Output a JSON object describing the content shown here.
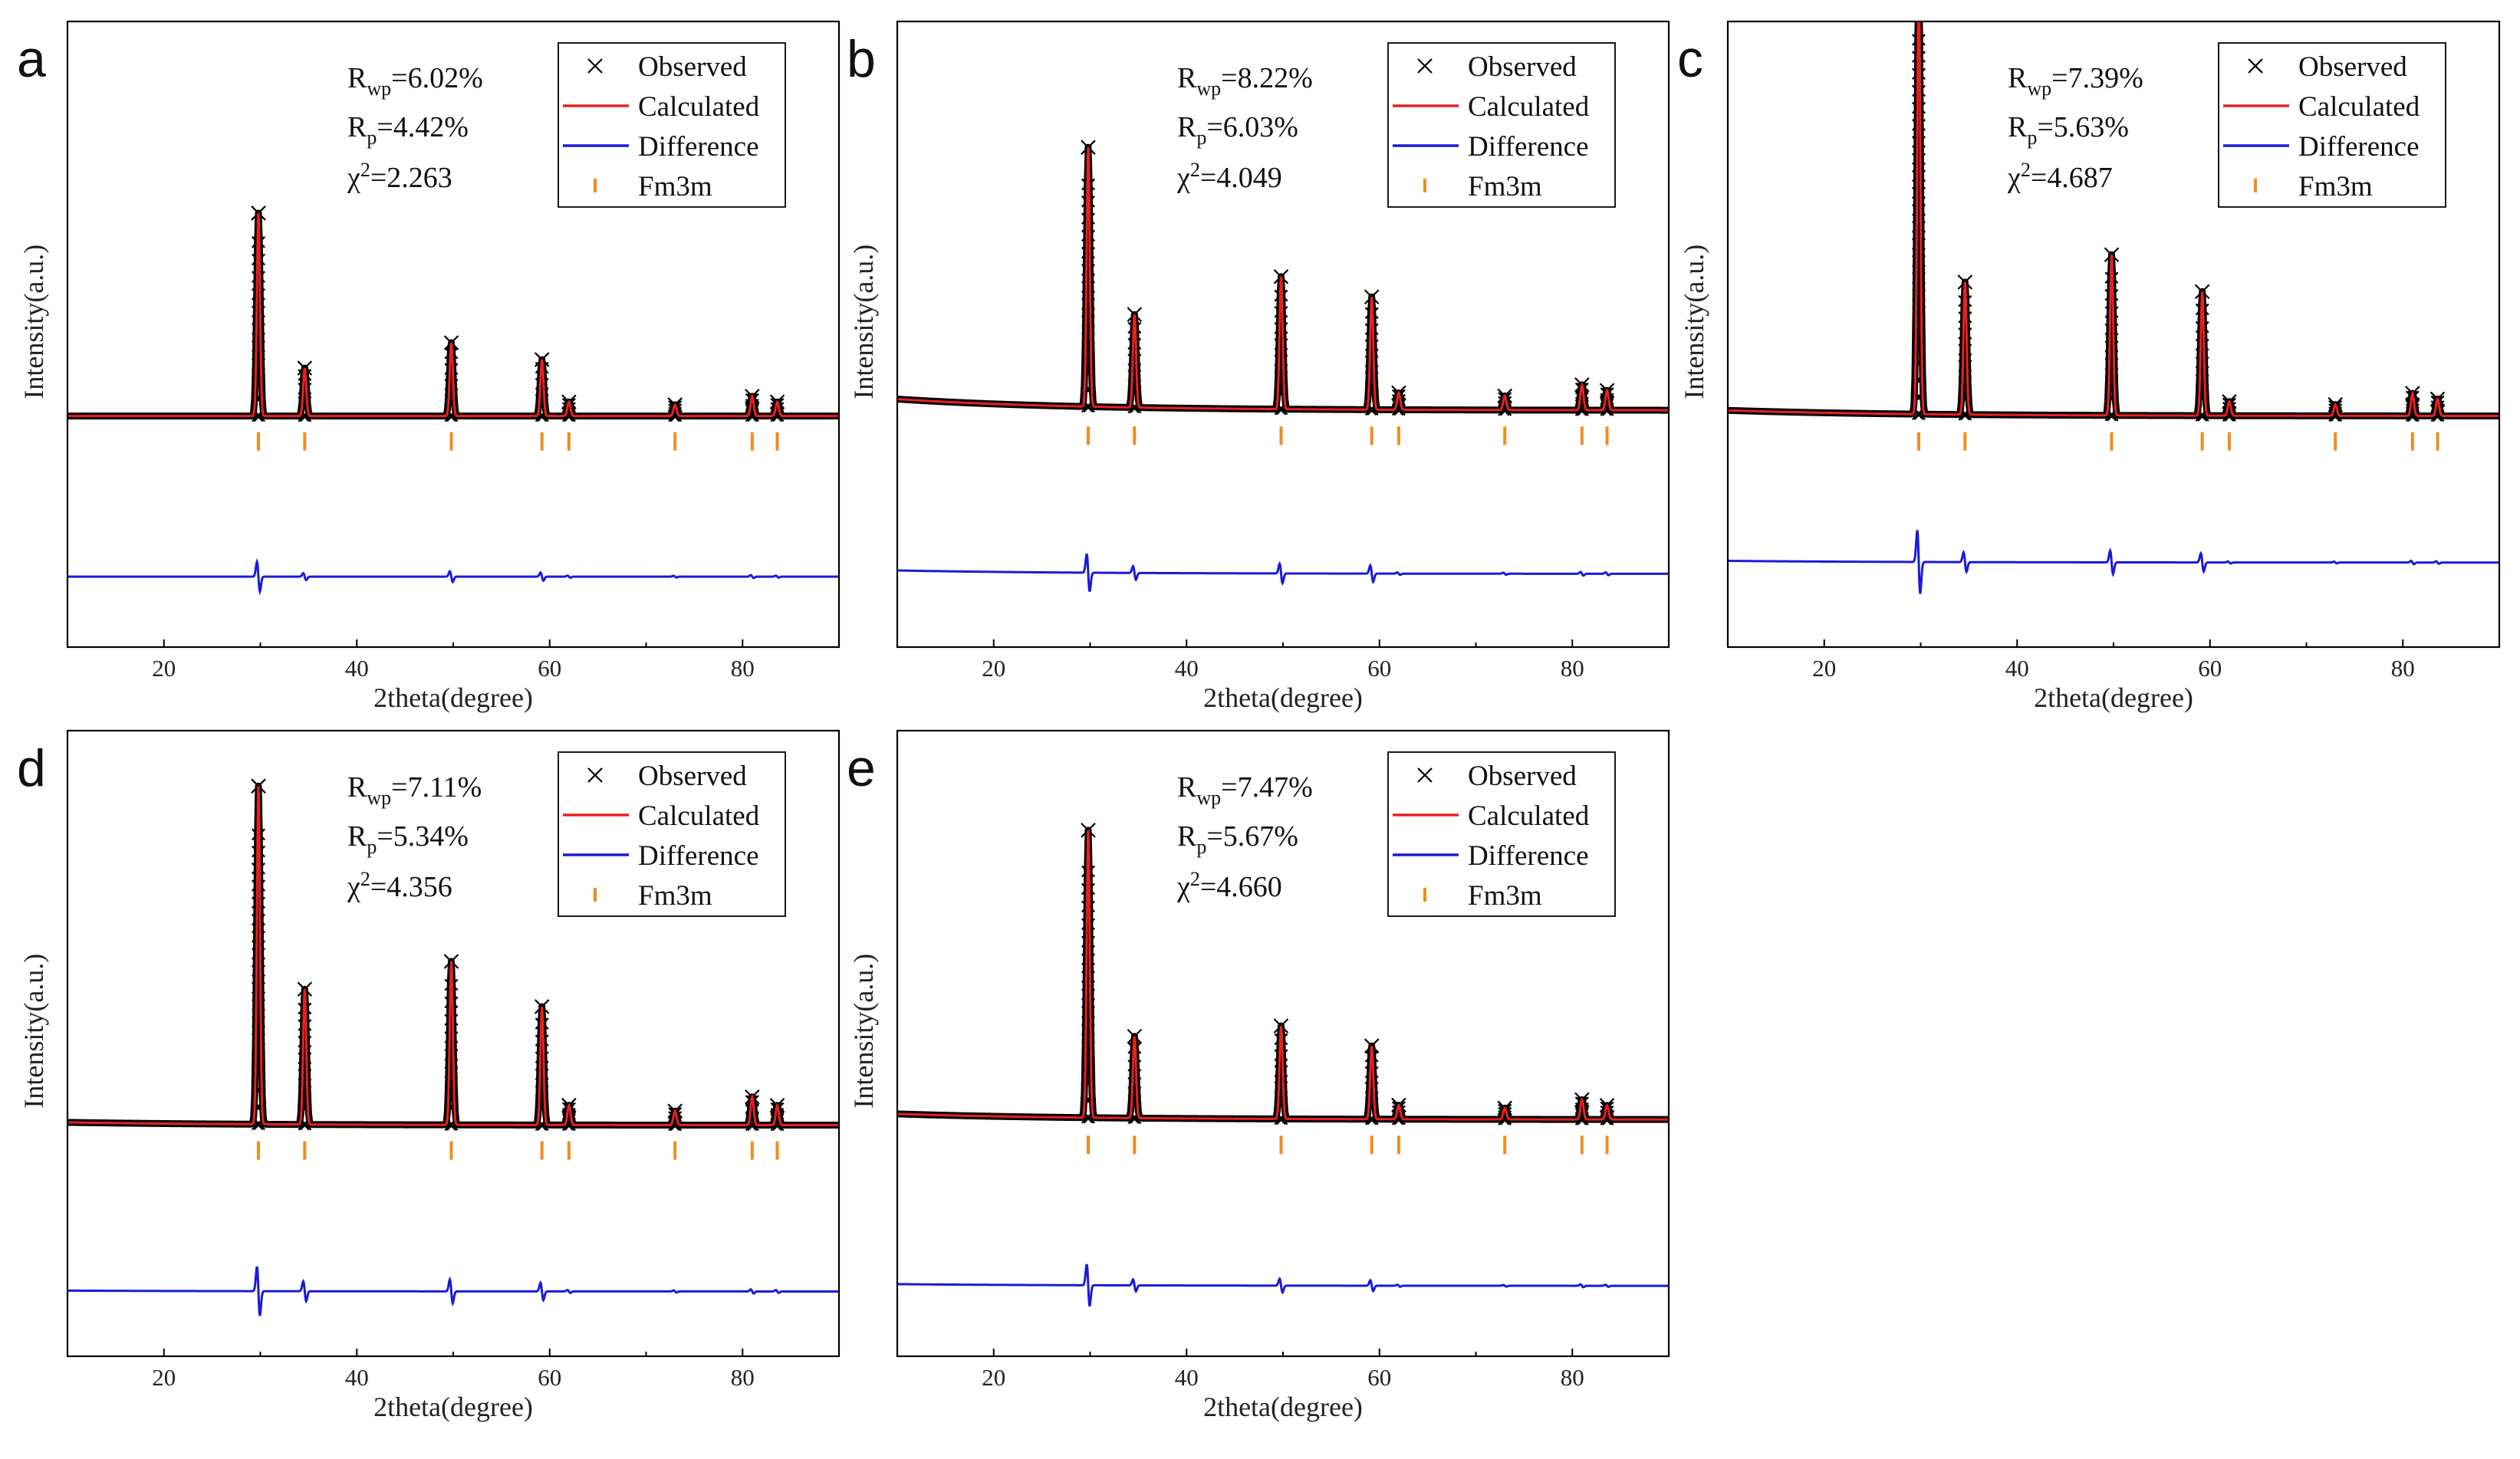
{
  "figure": {
    "x_axis_label": "2theta(degree)",
    "y_axis_label": "Intensity(a.u.)",
    "x_ticks": [
      20,
      40,
      60,
      80
    ],
    "legend": {
      "observed": "Observed",
      "calculated": "Calculated",
      "difference": "Difference",
      "phase": "Fm3m"
    },
    "colors": {
      "observed": "#000000",
      "calculated": "#e8201e",
      "difference": "#1a1adb",
      "phase": "#f08c1e"
    }
  },
  "chart_data": [
    {
      "type": "line",
      "panel": "a",
      "xlabel": "2theta(degree)",
      "ylabel": "Intensity(a.u.)",
      "xlim": [
        10,
        90
      ],
      "stats": {
        "rwp": "=6.02%",
        "rp": "=4.42%",
        "chi2": "=2.263"
      },
      "series": [
        {
          "name": "Observed",
          "style": "markers-x",
          "baseline": 0.22,
          "background_drop": 0.0,
          "peaks": [
            [
              29.8,
              0.72
            ],
            [
              34.6,
              0.17
            ],
            [
              49.8,
              0.26
            ],
            [
              59.2,
              0.2
            ],
            [
              62.0,
              0.05
            ],
            [
              73.0,
              0.04
            ],
            [
              81.0,
              0.07
            ],
            [
              83.6,
              0.05
            ]
          ]
        },
        {
          "name": "Calculated",
          "style": "line"
        },
        {
          "name": "Difference",
          "style": "line",
          "offset": -0.35
        },
        {
          "name": "Fm3m",
          "style": "ticks"
        }
      ],
      "bragg_positions": [
        29.8,
        34.6,
        49.8,
        59.2,
        62.0,
        73.0,
        81.0,
        83.6
      ]
    },
    {
      "type": "line",
      "panel": "b",
      "xlabel": "2theta(degree)",
      "ylabel": "Intensity(a.u.)",
      "xlim": [
        10,
        90
      ],
      "stats": {
        "rwp": "=8.22%",
        "rp": "=6.03%",
        "chi2": "=4.049"
      },
      "series": [
        {
          "name": "Observed",
          "style": "markers-x",
          "baseline": 0.24,
          "background_drop": 0.04,
          "peaks": [
            [
              29.8,
              0.92
            ],
            [
              34.6,
              0.33
            ],
            [
              49.8,
              0.47
            ],
            [
              59.2,
              0.4
            ],
            [
              62.0,
              0.06
            ],
            [
              73.0,
              0.05
            ],
            [
              81.0,
              0.09
            ],
            [
              83.6,
              0.07
            ]
          ]
        },
        {
          "name": "Calculated",
          "style": "line"
        },
        {
          "name": "Difference",
          "style": "line",
          "offset": -0.34
        },
        {
          "name": "Fm3m",
          "style": "ticks"
        }
      ],
      "bragg_positions": [
        29.8,
        34.6,
        49.8,
        59.2,
        62.0,
        73.0,
        81.0,
        83.6
      ]
    },
    {
      "type": "line",
      "panel": "c",
      "xlabel": "2theta(degree)",
      "ylabel": "Intensity(a.u.)",
      "xlim": [
        10,
        90
      ],
      "stats": {
        "rwp": "=7.39%",
        "rp": "=5.63%",
        "chi2": "=4.687"
      },
      "series": [
        {
          "name": "Observed",
          "style": "markers-x",
          "baseline": 0.22,
          "background_drop": 0.02,
          "peaks": [
            [
              29.8,
              1.55
            ],
            [
              34.6,
              0.47
            ],
            [
              49.8,
              0.57
            ],
            [
              59.2,
              0.44
            ],
            [
              62.0,
              0.05
            ],
            [
              73.0,
              0.04
            ],
            [
              81.0,
              0.08
            ],
            [
              83.6,
              0.06
            ]
          ]
        },
        {
          "name": "Calculated",
          "style": "line"
        },
        {
          "name": "Difference",
          "style": "line",
          "offset": -0.3
        },
        {
          "name": "Fm3m",
          "style": "ticks"
        }
      ],
      "bragg_positions": [
        29.8,
        34.6,
        49.8,
        59.2,
        62.0,
        73.0,
        81.0,
        83.6
      ]
    },
    {
      "type": "line",
      "panel": "d",
      "xlabel": "2theta(degree)",
      "ylabel": "Intensity(a.u.)",
      "xlim": [
        10,
        90
      ],
      "stats": {
        "rwp": "=7.11%",
        "rp": "=5.34%",
        "chi2": "=4.356"
      },
      "series": [
        {
          "name": "Observed",
          "style": "markers-x",
          "baseline": 0.22,
          "background_drop": 0.01,
          "peaks": [
            [
              29.8,
              1.2
            ],
            [
              34.6,
              0.48
            ],
            [
              49.8,
              0.58
            ],
            [
              59.2,
              0.42
            ],
            [
              62.0,
              0.07
            ],
            [
              73.0,
              0.05
            ],
            [
              81.0,
              0.1
            ],
            [
              83.6,
              0.07
            ]
          ]
        },
        {
          "name": "Calculated",
          "style": "line"
        },
        {
          "name": "Difference",
          "style": "line",
          "offset": -0.37
        },
        {
          "name": "Fm3m",
          "style": "ticks"
        }
      ],
      "bragg_positions": [
        29.8,
        34.6,
        49.8,
        59.2,
        62.0,
        73.0,
        81.0,
        83.6
      ]
    },
    {
      "type": "line",
      "panel": "e",
      "xlabel": "2theta(degree)",
      "ylabel": "Intensity(a.u.)",
      "xlim": [
        10,
        90
      ],
      "stats": {
        "rwp": "=7.47%",
        "rp": "=5.67%",
        "chi2": "=4.660"
      },
      "series": [
        {
          "name": "Observed",
          "style": "markers-x",
          "baseline": 0.24,
          "background_drop": 0.02,
          "peaks": [
            [
              29.8,
              1.02
            ],
            [
              34.6,
              0.29
            ],
            [
              49.8,
              0.33
            ],
            [
              59.2,
              0.26
            ],
            [
              62.0,
              0.05
            ],
            [
              73.0,
              0.04
            ],
            [
              81.0,
              0.07
            ],
            [
              83.6,
              0.05
            ]
          ]
        },
        {
          "name": "Calculated",
          "style": "line"
        },
        {
          "name": "Difference",
          "style": "line",
          "offset": -0.35
        },
        {
          "name": "Fm3m",
          "style": "ticks"
        }
      ],
      "bragg_positions": [
        29.8,
        34.6,
        49.8,
        59.2,
        62.0,
        73.0,
        81.0,
        83.6
      ]
    }
  ]
}
